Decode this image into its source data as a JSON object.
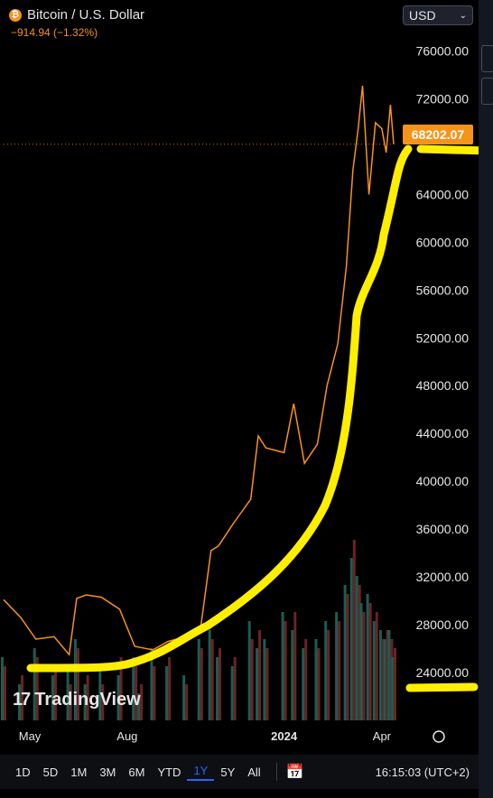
{
  "header": {
    "icon": "bitcoin-icon",
    "title": "Bitcoin / U.S. Dollar",
    "change": "−914.94 (−1.32%)"
  },
  "currency": {
    "label": "USD",
    "icon": "chevron-down-icon"
  },
  "last_price": "68202.07",
  "logo": {
    "text": "TradingView"
  },
  "timeframes": [
    "1D",
    "5D",
    "1M",
    "3M",
    "6M",
    "YTD",
    "1Y",
    "5Y",
    "All"
  ],
  "active_timeframe": "1Y",
  "clock": "16:15:03 (UTC+2)",
  "colors": {
    "line": "#f7931a",
    "highlight": "#ffee00",
    "vol_up": "#1d5c52",
    "vol_down": "#6b2326"
  },
  "chart_data": {
    "type": "line",
    "ylim": [
      20000,
      78000
    ],
    "y_ticks": [
      "76000.00",
      "72000.00",
      "64000.00",
      "60000.00",
      "56000.00",
      "52000.00",
      "48000.00",
      "44000.00",
      "40000.00",
      "36000.00",
      "32000.00",
      "28000.00",
      "24000.00"
    ],
    "x_ticks": [
      "May",
      "Aug",
      "2024",
      "Apr"
    ],
    "x": [
      "2023-04-15",
      "2023-05-01",
      "2023-05-15",
      "2023-06-01",
      "2023-06-15",
      "2023-06-22",
      "2023-07-01",
      "2023-07-15",
      "2023-08-01",
      "2023-08-15",
      "2023-08-20",
      "2023-09-01",
      "2023-09-15",
      "2023-10-01",
      "2023-10-15",
      "2023-10-25",
      "2023-11-01",
      "2023-11-15",
      "2023-12-01",
      "2023-12-08",
      "2023-12-15",
      "2024-01-01",
      "2024-01-10",
      "2024-01-20",
      "2024-02-01",
      "2024-02-10",
      "2024-02-20",
      "2024-02-28",
      "2024-03-05",
      "2024-03-10",
      "2024-03-14",
      "2024-03-20",
      "2024-03-26",
      "2024-04-01",
      "2024-04-05",
      "2024-04-09",
      "2024-04-12"
    ],
    "values": [
      30100,
      28600,
      26800,
      27000,
      25500,
      30200,
      30500,
      30300,
      29300,
      26200,
      26100,
      25900,
      26600,
      27000,
      27500,
      34200,
      34600,
      36500,
      38500,
      43800,
      42800,
      42400,
      46500,
      41500,
      43100,
      48000,
      51500,
      58000,
      66000,
      69500,
      73100,
      64000,
      70000,
      69500,
      67500,
      71500,
      68200
    ],
    "volume_up": [
      0.35,
      0.2,
      0.4,
      0.25,
      0.3,
      0.45,
      0.2,
      0.3,
      0.25,
      0.35,
      0.15,
      0.4,
      0.3,
      0.25,
      0.45,
      0.5,
      0.35,
      0.3,
      0.55,
      0.4,
      0.45,
      0.6,
      0.5,
      0.4,
      0.45,
      0.55,
      0.6,
      0.75,
      0.9,
      0.8,
      0.65,
      0.7,
      0.55,
      0.5,
      0.45,
      0.5,
      0.35
    ],
    "volume_down": [
      0.3,
      0.25,
      0.35,
      0.3,
      0.2,
      0.4,
      0.25,
      0.2,
      0.35,
      0.3,
      0.2,
      0.3,
      0.35,
      0.2,
      0.4,
      0.45,
      0.4,
      0.35,
      0.45,
      0.5,
      0.4,
      0.55,
      0.6,
      0.45,
      0.4,
      0.5,
      0.55,
      0.7,
      1.0,
      0.75,
      0.6,
      0.65,
      0.6,
      0.45,
      0.5,
      0.45,
      0.4
    ]
  }
}
